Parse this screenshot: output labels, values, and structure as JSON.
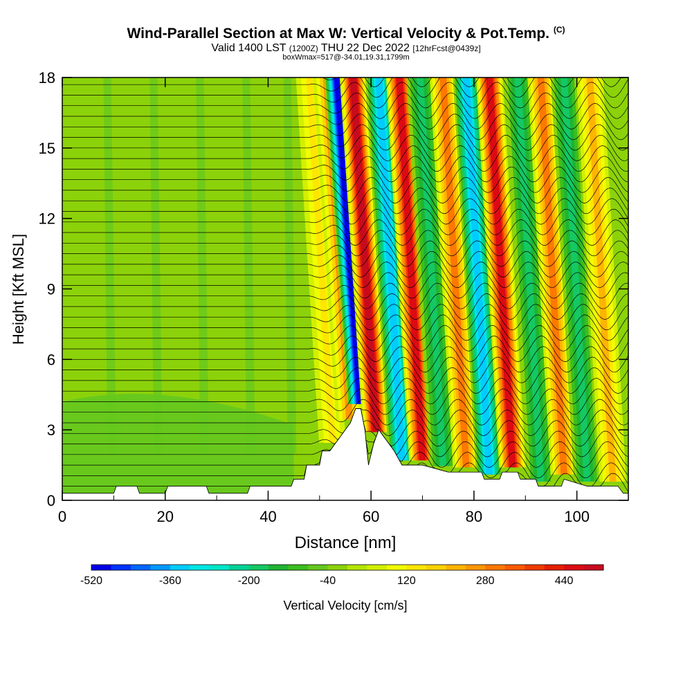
{
  "title": {
    "main": "Wind-Parallel Section at Max W: Vertical Velocity & Pot.Temp.",
    "copyright": "(C)",
    "valid_prefix": "Valid 1400 LST",
    "valid_z": "(1200Z)",
    "valid_date": "THU 22 Dec 2022",
    "forecast": "[12hrFcst@0439z]",
    "box": "boxWmax=517@-34.01,19.31,1799m"
  },
  "chart_data": {
    "type": "heatmap",
    "xlabel": "Distance [nm]",
    "ylabel": "Height [Kft MSL]",
    "xlim": [
      0,
      110
    ],
    "ylim": [
      0,
      18
    ],
    "xticks": [
      0,
      20,
      40,
      60,
      80,
      100
    ],
    "yticks": [
      0,
      3,
      6,
      9,
      12,
      15,
      18
    ],
    "colorbar": {
      "label": "Vertical Velocity [cm/s]",
      "min": -520,
      "max": 520,
      "step": 40,
      "tick_labels": [
        -520,
        -360,
        -200,
        -40,
        120,
        280,
        440
      ],
      "colors": [
        "#0000e6",
        "#0033ff",
        "#0066ff",
        "#0099ff",
        "#00ccff",
        "#00e6e6",
        "#00e6c8",
        "#00d296",
        "#14c864",
        "#1eb432",
        "#3cbe1e",
        "#64c81e",
        "#8cd20a",
        "#b4e600",
        "#d2f000",
        "#f0ff00",
        "#ffe600",
        "#ffd200",
        "#ffb400",
        "#ff9600",
        "#ff7800",
        "#ff5a00",
        "#f03c00",
        "#e61e00",
        "#dc0a14",
        "#c80a1e"
      ]
    },
    "terrain_profile": {
      "x_nm": [
        0,
        10,
        10.5,
        14.5,
        15,
        20,
        20.5,
        28,
        28.5,
        36,
        36.5,
        40,
        40.5,
        44.5,
        45,
        47,
        47.5,
        50,
        50.5,
        52,
        53,
        54,
        55,
        56,
        57,
        58,
        58.8,
        59.5,
        60.5,
        61.5,
        62.5,
        63.5,
        64.5,
        66,
        70,
        75,
        80,
        81.5,
        82,
        85,
        85.5,
        88.5,
        89,
        92,
        92.5,
        97,
        97.5,
        102,
        106,
        108,
        109,
        110
      ],
      "height_kft": [
        0.3,
        0.3,
        0.6,
        0.6,
        0.3,
        0.3,
        0.6,
        0.6,
        0.3,
        0.3,
        0.6,
        0.6,
        0.6,
        0.6,
        0.9,
        0.9,
        1.5,
        1.5,
        2.1,
        2.1,
        2.4,
        2.7,
        3.0,
        3.3,
        3.9,
        3.9,
        3.0,
        1.5,
        2.4,
        3.0,
        2.7,
        2.4,
        2.1,
        1.5,
        1.5,
        1.2,
        1.2,
        1.2,
        0.9,
        0.9,
        1.2,
        1.2,
        0.9,
        0.9,
        0.6,
        0.6,
        0.9,
        0.6,
        0.6,
        0.6,
        0.3,
        0.3
      ]
    },
    "wave_bands_w_cm_s": [
      {
        "x_nm": 52.5,
        "w": 120
      },
      {
        "x_nm": 55.8,
        "w": 240
      },
      {
        "x_nm": 58.0,
        "w": -520
      },
      {
        "x_nm": 61.0,
        "w": 517
      },
      {
        "x_nm": 66.0,
        "w": -360
      },
      {
        "x_nm": 70.0,
        "w": 440
      },
      {
        "x_nm": 74.0,
        "w": -200
      },
      {
        "x_nm": 78.5,
        "w": 280
      },
      {
        "x_nm": 83.0,
        "w": -360
      },
      {
        "x_nm": 87.5,
        "w": 440
      },
      {
        "x_nm": 93.0,
        "w": -200
      },
      {
        "x_nm": 97.5,
        "w": 280
      },
      {
        "x_nm": 102.0,
        "w": -200
      },
      {
        "x_nm": 107.0,
        "w": 200
      }
    ]
  }
}
